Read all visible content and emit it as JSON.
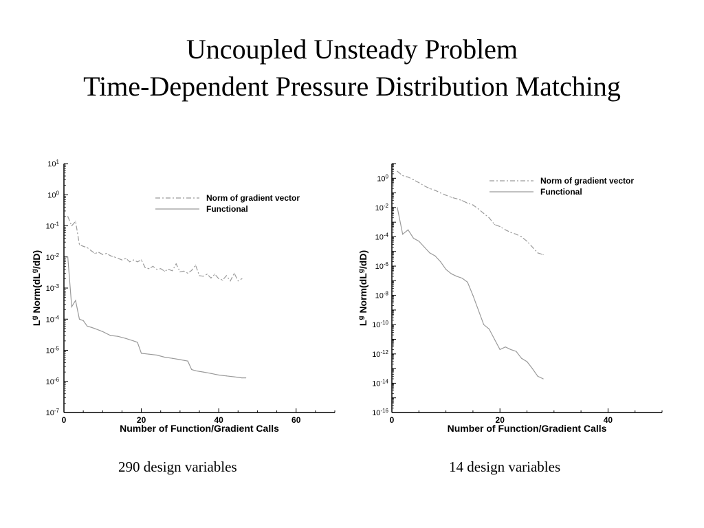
{
  "slide": {
    "title_line1": "Uncoupled Unsteady Problem",
    "title_line2": "Time-Dependent Pressure Distribution Matching",
    "caption_left": "290 design variables",
    "caption_right": "14 design variables"
  },
  "chart_data": [
    {
      "type": "line",
      "xlabel": "Number of Function/Gradient Calls",
      "ylabel": "L^g Norm(dL^g/dD)",
      "xlim": [
        0,
        70
      ],
      "xticks": [
        0,
        20,
        40,
        60
      ],
      "ylim_log10": [
        -7,
        1
      ],
      "y_scale": "log",
      "yticks_exp": [
        1,
        0,
        -1,
        -2,
        -3,
        -4,
        -5,
        -6,
        -7
      ],
      "grid": false,
      "legend_position": "top-right",
      "series": [
        {
          "name": "Norm of gradient vector",
          "style": "dash-dot",
          "color": "#9a9a9a",
          "x": [
            1,
            2,
            3,
            4,
            5,
            6,
            7,
            8,
            9,
            10,
            11,
            12,
            13,
            14,
            15,
            16,
            17,
            18,
            19,
            20,
            21,
            22,
            23,
            24,
            25,
            26,
            27,
            28,
            29,
            30,
            31,
            32,
            33,
            34,
            35,
            36,
            37,
            38,
            39,
            40,
            41,
            42,
            43,
            44,
            45,
            46
          ],
          "y": [
            0.2,
            0.1,
            0.14,
            0.025,
            0.022,
            0.02,
            0.016,
            0.013,
            0.014,
            0.012,
            0.013,
            0.011,
            0.01,
            0.009,
            0.008,
            0.009,
            0.007,
            0.008,
            0.007,
            0.008,
            0.0045,
            0.0042,
            0.005,
            0.004,
            0.0042,
            0.0035,
            0.004,
            0.0036,
            0.006,
            0.0033,
            0.0035,
            0.003,
            0.0037,
            0.0055,
            0.0025,
            0.0024,
            0.0028,
            0.0021,
            0.0028,
            0.002,
            0.0018,
            0.0025,
            0.0017,
            0.003,
            0.0017,
            0.002
          ]
        },
        {
          "name": "Functional",
          "style": "solid",
          "color": "#9a9a9a",
          "x": [
            1,
            2,
            3,
            4,
            5,
            6,
            7,
            8,
            10,
            12,
            14,
            16,
            18,
            19,
            20,
            22,
            24,
            26,
            28,
            30,
            32,
            33,
            34,
            36,
            38,
            40,
            42,
            44,
            46,
            47
          ],
          "y": [
            0.01,
            0.00025,
            0.0004,
            0.0001,
            9e-05,
            6e-05,
            5.5e-05,
            5e-05,
            4e-05,
            3e-05,
            2.8e-05,
            2.4e-05,
            2e-05,
            1.8e-05,
            8e-06,
            7.5e-06,
            7e-06,
            6e-06,
            5.5e-06,
            5e-06,
            4.5e-06,
            2.4e-06,
            2.2e-06,
            2e-06,
            1.8e-06,
            1.6e-06,
            1.5e-06,
            1.4e-06,
            1.3e-06,
            1.3e-06
          ]
        }
      ]
    },
    {
      "type": "line",
      "xlabel": "Number of Function/Gradient Calls",
      "ylabel": "L^g Norm(dL^g/dD)",
      "xlim": [
        0,
        50
      ],
      "xticks": [
        0,
        20,
        40
      ],
      "ylim_log10": [
        -16,
        1
      ],
      "y_scale": "log",
      "yticks_exp": [
        0,
        -2,
        -4,
        -6,
        -8,
        -10,
        -12,
        -14,
        -16
      ],
      "grid": false,
      "legend_position": "top-right",
      "series": [
        {
          "name": "Norm of gradient vector",
          "style": "dash-dot",
          "color": "#9a9a9a",
          "x": [
            1,
            2,
            3,
            4,
            5,
            6,
            7,
            8,
            9,
            10,
            11,
            12,
            13,
            14,
            15,
            16,
            17,
            18,
            19,
            20,
            21,
            22,
            23,
            24,
            25,
            26,
            27,
            28
          ],
          "y": [
            3,
            1.5,
            1.2,
            0.8,
            0.5,
            0.3,
            0.2,
            0.15,
            0.1,
            0.07,
            0.05,
            0.04,
            0.03,
            0.02,
            0.015,
            0.008,
            0.004,
            0.002,
            0.0007,
            0.0005,
            0.0003,
            0.0002,
            0.00015,
            0.0001,
            5e-05,
            2e-05,
            8e-06,
            6e-06
          ]
        },
        {
          "name": "Functional",
          "style": "solid",
          "color": "#9a9a9a",
          "x": [
            1,
            2,
            3,
            4,
            5,
            6,
            7,
            8,
            9,
            10,
            11,
            12,
            13,
            14,
            15,
            16,
            17,
            18,
            19,
            20,
            21,
            22,
            23,
            24,
            25,
            26,
            27,
            28
          ],
          "y": [
            0.01,
            0.00015,
            0.0003,
            8e-05,
            5e-05,
            2e-05,
            8e-06,
            5e-06,
            2e-06,
            6e-07,
            3e-07,
            2e-07,
            1.5e-07,
            8e-08,
            1e-08,
            1e-09,
            1e-10,
            5e-11,
            1e-11,
            2e-12,
            3e-12,
            2e-12,
            1.5e-12,
            5e-13,
            3e-13,
            1e-13,
            3e-14,
            2e-14
          ]
        }
      ]
    }
  ]
}
